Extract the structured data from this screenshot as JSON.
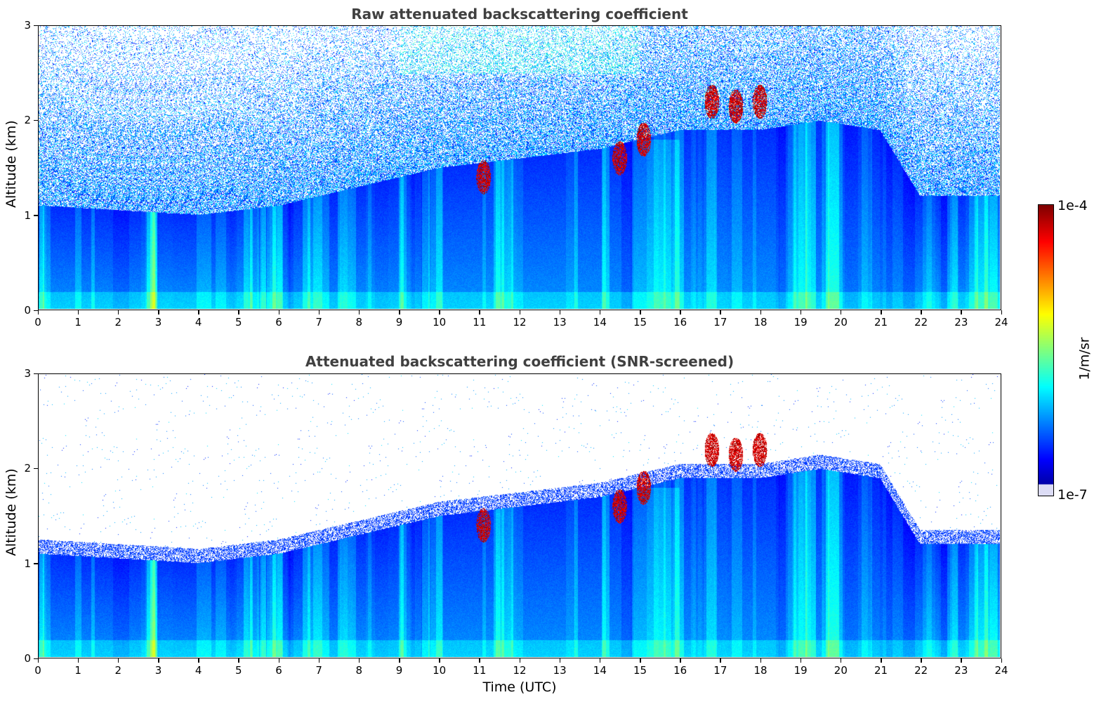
{
  "chart_data": [
    {
      "type": "heatmap",
      "title": "Raw attenuated backscattering coefficient",
      "xlabel": "",
      "ylabel": "Altitude (km)",
      "xlim": [
        0,
        24
      ],
      "ylim": [
        0,
        3
      ],
      "x_ticks": [
        "0",
        "1",
        "2",
        "3",
        "4",
        "5",
        "6",
        "7",
        "8",
        "9",
        "10",
        "11",
        "12",
        "13",
        "14",
        "15",
        "16",
        "17",
        "18",
        "19",
        "20",
        "21",
        "22",
        "23",
        "24"
      ],
      "y_ticks": [
        "0",
        "1",
        "2",
        "3"
      ],
      "colorscale": "jet",
      "features": {
        "boundary_layer_top_km": [
          [
            0,
            1.1
          ],
          [
            2,
            1.05
          ],
          [
            4,
            1.0
          ],
          [
            6,
            1.1
          ],
          [
            8,
            1.3
          ],
          [
            10,
            1.5
          ],
          [
            12,
            1.6
          ],
          [
            14,
            1.7
          ],
          [
            16,
            1.9
          ],
          [
            18,
            1.9
          ],
          [
            19.5,
            2.0
          ],
          [
            21,
            1.9
          ],
          [
            22,
            1.2
          ],
          [
            24,
            1.2
          ]
        ],
        "clouds": [
          {
            "time_utc": 14.5,
            "alt_km": 1.6
          },
          {
            "time_utc": 15.1,
            "alt_km": 1.8
          },
          {
            "time_utc": 16.8,
            "alt_km": 2.2
          },
          {
            "time_utc": 17.4,
            "alt_km": 2.15
          },
          {
            "time_utc": 18.0,
            "alt_km": 2.2
          },
          {
            "time_utc": 11.1,
            "alt_km": 1.4
          }
        ]
      }
    },
    {
      "type": "heatmap",
      "title": "Attenuated backscattering coefficient (SNR-screened)",
      "xlabel": "Time (UTC)",
      "ylabel": "Altitude (km)",
      "xlim": [
        0,
        24
      ],
      "ylim": [
        0,
        3
      ],
      "x_ticks": [
        "0",
        "1",
        "2",
        "3",
        "4",
        "5",
        "6",
        "7",
        "8",
        "9",
        "10",
        "11",
        "12",
        "13",
        "14",
        "15",
        "16",
        "17",
        "18",
        "19",
        "20",
        "21",
        "22",
        "23",
        "24"
      ],
      "y_ticks": [
        "0",
        "1",
        "2",
        "3"
      ],
      "colorscale": "jet",
      "screened": true
    }
  ],
  "colorbar": {
    "label": "1/m/sr",
    "max_label": "1e-4",
    "min_label": "1e-7",
    "scale": "log"
  }
}
